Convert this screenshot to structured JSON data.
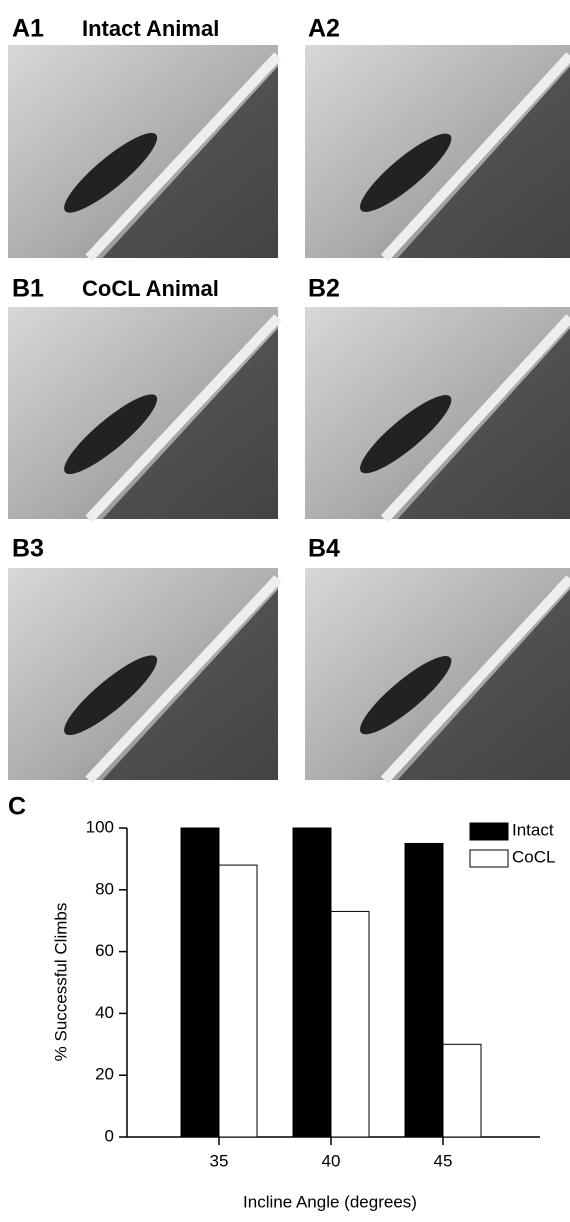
{
  "panels": [
    {
      "label": "A1",
      "title": "Intact Animal"
    },
    {
      "label": "A2"
    },
    {
      "label": "B1",
      "title": "CoCL Animal"
    },
    {
      "label": "B2"
    },
    {
      "label": "B3"
    },
    {
      "label": "B4"
    }
  ],
  "chart_data": {
    "type": "bar",
    "label": "C",
    "y_label": "% Successful Climbs",
    "x_label": "Incline Angle (degrees)",
    "categories": [
      "35",
      "40",
      "45"
    ],
    "series": [
      {
        "name": "Intact",
        "color": "#000000",
        "values": [
          100,
          100,
          95
        ]
      },
      {
        "name": "CoCL",
        "color": "#ffffff",
        "values": [
          88,
          73,
          30
        ]
      }
    ],
    "ylim": [
      0,
      100
    ],
    "yticks": [
      0,
      20,
      40,
      60,
      80,
      100
    ],
    "legend": "upper right"
  }
}
